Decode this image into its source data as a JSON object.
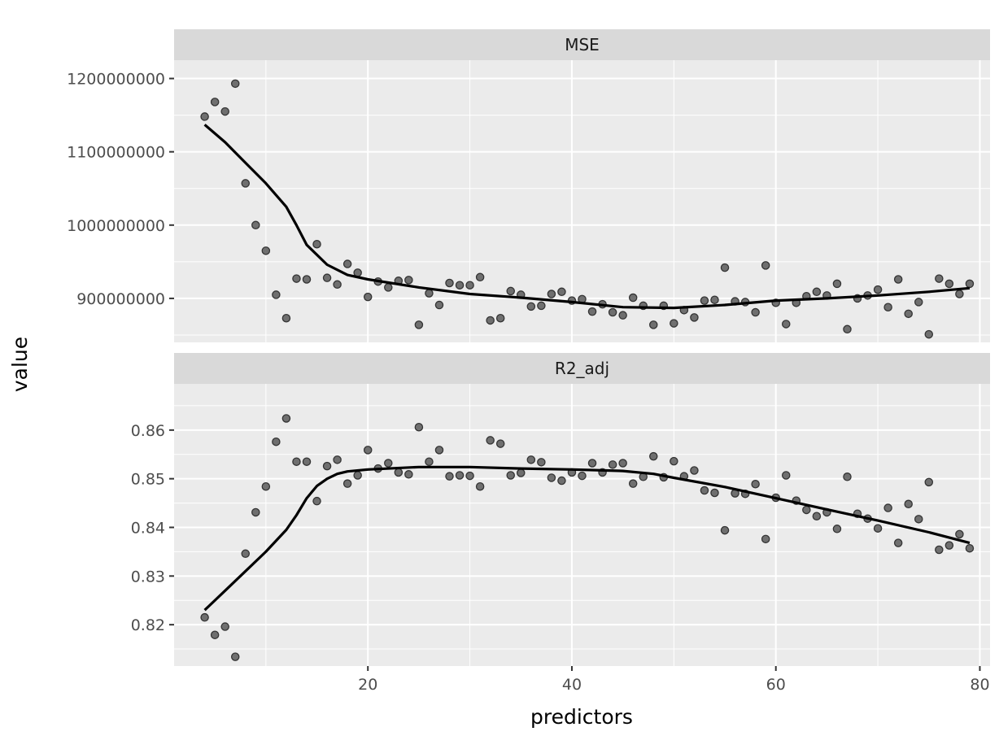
{
  "chart_data": {
    "type": "scatter",
    "xlabel": "predictors",
    "ylabel": "value",
    "xlim": [
      1,
      81
    ],
    "x_ticks": [
      20,
      40,
      60,
      80
    ],
    "x_tick_labels": [
      "20",
      "40",
      "60",
      "80"
    ],
    "colors": {
      "panel_bg": "#ebebeb",
      "strip_bg": "#d9d9d9",
      "grid": "#ffffff",
      "point_fill": "#595959",
      "point_stroke": "#333333",
      "smooth_line": "#000000"
    },
    "panels": [
      {
        "facet": "MSE",
        "ylim": [
          840000000,
          1225000000
        ],
        "y_ticks": [
          900000000,
          1000000000,
          1100000000,
          1200000000
        ],
        "y_tick_labels": [
          "900000000",
          "1000000000",
          "1100000000",
          "1200000000"
        ],
        "points": [
          [
            4,
            1148000000
          ],
          [
            5,
            1168000000
          ],
          [
            6,
            1155000000
          ],
          [
            7,
            1193000000
          ],
          [
            8,
            1057000000
          ],
          [
            9,
            1000000000
          ],
          [
            10,
            965000000
          ],
          [
            11,
            905000000
          ],
          [
            12,
            873000000
          ],
          [
            13,
            927000000
          ],
          [
            14,
            926000000
          ],
          [
            15,
            974000000
          ],
          [
            16,
            928000000
          ],
          [
            17,
            919000000
          ],
          [
            18,
            947000000
          ],
          [
            19,
            935000000
          ],
          [
            20,
            902000000
          ],
          [
            21,
            923000000
          ],
          [
            22,
            915000000
          ],
          [
            23,
            924000000
          ],
          [
            24,
            925000000
          ],
          [
            25,
            864000000
          ],
          [
            26,
            907000000
          ],
          [
            27,
            891000000
          ],
          [
            28,
            921000000
          ],
          [
            29,
            918000000
          ],
          [
            30,
            918000000
          ],
          [
            31,
            929000000
          ],
          [
            32,
            870000000
          ],
          [
            33,
            873000000
          ],
          [
            34,
            910000000
          ],
          [
            35,
            905000000
          ],
          [
            36,
            889000000
          ],
          [
            37,
            890000000
          ],
          [
            38,
            906000000
          ],
          [
            39,
            909000000
          ],
          [
            40,
            897000000
          ],
          [
            41,
            899000000
          ],
          [
            42,
            882000000
          ],
          [
            43,
            892000000
          ],
          [
            44,
            881000000
          ],
          [
            45,
            877000000
          ],
          [
            46,
            901000000
          ],
          [
            47,
            890000000
          ],
          [
            48,
            864000000
          ],
          [
            49,
            890000000
          ],
          [
            50,
            866000000
          ],
          [
            51,
            884000000
          ],
          [
            52,
            874000000
          ],
          [
            53,
            897000000
          ],
          [
            54,
            898000000
          ],
          [
            55,
            942000000
          ],
          [
            56,
            896000000
          ],
          [
            57,
            895000000
          ],
          [
            58,
            881000000
          ],
          [
            59,
            945000000
          ],
          [
            60,
            894000000
          ],
          [
            61,
            865000000
          ],
          [
            62,
            894000000
          ],
          [
            63,
            903000000
          ],
          [
            64,
            909000000
          ],
          [
            65,
            904000000
          ],
          [
            66,
            920000000
          ],
          [
            67,
            858000000
          ],
          [
            68,
            900000000
          ],
          [
            69,
            904000000
          ],
          [
            70,
            912000000
          ],
          [
            71,
            888000000
          ],
          [
            72,
            926000000
          ],
          [
            73,
            879000000
          ],
          [
            74,
            895000000
          ],
          [
            75,
            851000000
          ],
          [
            76,
            927000000
          ],
          [
            77,
            920000000
          ],
          [
            78,
            906000000
          ],
          [
            79,
            920000000
          ]
        ],
        "smooth": [
          [
            4,
            1137000000
          ],
          [
            6,
            1113000000
          ],
          [
            8,
            1085000000
          ],
          [
            10,
            1057000000
          ],
          [
            12,
            1025000000
          ],
          [
            13,
            1000000000
          ],
          [
            14,
            973000000
          ],
          [
            16,
            946000000
          ],
          [
            18,
            932000000
          ],
          [
            20,
            926000000
          ],
          [
            25,
            915000000
          ],
          [
            30,
            906000000
          ],
          [
            35,
            901000000
          ],
          [
            40,
            895000000
          ],
          [
            45,
            888000000
          ],
          [
            50,
            887000000
          ],
          [
            55,
            891000000
          ],
          [
            60,
            897000000
          ],
          [
            65,
            900000000
          ],
          [
            70,
            904000000
          ],
          [
            75,
            909000000
          ],
          [
            79,
            914000000
          ]
        ]
      },
      {
        "facet": "R2_adj",
        "ylim": [
          0.8115,
          0.8695
        ],
        "y_ticks": [
          0.82,
          0.83,
          0.84,
          0.85,
          0.86
        ],
        "y_tick_labels": [
          "0.82",
          "0.83",
          "0.84",
          "0.85",
          "0.86"
        ],
        "points": [
          [
            4,
            0.8215
          ],
          [
            5,
            0.8179
          ],
          [
            6,
            0.8196
          ],
          [
            7,
            0.8134
          ],
          [
            8,
            0.8346
          ],
          [
            9,
            0.8431
          ],
          [
            10,
            0.8484
          ],
          [
            11,
            0.8576
          ],
          [
            12,
            0.8624
          ],
          [
            13,
            0.8535
          ],
          [
            14,
            0.8535
          ],
          [
            15,
            0.8454
          ],
          [
            16,
            0.8526
          ],
          [
            17,
            0.8539
          ],
          [
            18,
            0.849
          ],
          [
            19,
            0.8507
          ],
          [
            20,
            0.8559
          ],
          [
            21,
            0.8521
          ],
          [
            22,
            0.8532
          ],
          [
            23,
            0.8513
          ],
          [
            24,
            0.8509
          ],
          [
            25,
            0.8606
          ],
          [
            26,
            0.8535
          ],
          [
            27,
            0.8559
          ],
          [
            28,
            0.8505
          ],
          [
            29,
            0.8507
          ],
          [
            30,
            0.8506
          ],
          [
            31,
            0.8484
          ],
          [
            32,
            0.8579
          ],
          [
            33,
            0.8572
          ],
          [
            34,
            0.8507
          ],
          [
            35,
            0.8512
          ],
          [
            36,
            0.8539
          ],
          [
            37,
            0.8534
          ],
          [
            38,
            0.8502
          ],
          [
            39,
            0.8496
          ],
          [
            40,
            0.8513
          ],
          [
            41,
            0.8506
          ],
          [
            42,
            0.8532
          ],
          [
            43,
            0.8513
          ],
          [
            44,
            0.8529
          ],
          [
            45,
            0.8532
          ],
          [
            46,
            0.849
          ],
          [
            47,
            0.8504
          ],
          [
            48,
            0.8546
          ],
          [
            49,
            0.8503
          ],
          [
            50,
            0.8536
          ],
          [
            51,
            0.8505
          ],
          [
            52,
            0.8517
          ],
          [
            53,
            0.8476
          ],
          [
            54,
            0.8471
          ],
          [
            55,
            0.8394
          ],
          [
            56,
            0.847
          ],
          [
            57,
            0.8469
          ],
          [
            58,
            0.8489
          ],
          [
            59,
            0.8376
          ],
          [
            60,
            0.8461
          ],
          [
            61,
            0.8507
          ],
          [
            62,
            0.8455
          ],
          [
            63,
            0.8436
          ],
          [
            64,
            0.8423
          ],
          [
            65,
            0.8431
          ],
          [
            66,
            0.8397
          ],
          [
            67,
            0.8504
          ],
          [
            68,
            0.8428
          ],
          [
            69,
            0.8418
          ],
          [
            70,
            0.8398
          ],
          [
            71,
            0.844
          ],
          [
            72,
            0.8368
          ],
          [
            73,
            0.8448
          ],
          [
            74,
            0.8417
          ],
          [
            75,
            0.8493
          ],
          [
            76,
            0.8354
          ],
          [
            77,
            0.8363
          ],
          [
            78,
            0.8386
          ],
          [
            79,
            0.8357
          ]
        ],
        "smooth": [
          [
            4,
            0.823
          ],
          [
            6,
            0.827
          ],
          [
            8,
            0.831
          ],
          [
            10,
            0.835
          ],
          [
            12,
            0.8395
          ],
          [
            13,
            0.8425
          ],
          [
            14,
            0.846
          ],
          [
            15,
            0.8485
          ],
          [
            16,
            0.85
          ],
          [
            17,
            0.851
          ],
          [
            18,
            0.8515
          ],
          [
            20,
            0.8519
          ],
          [
            25,
            0.8524
          ],
          [
            30,
            0.8524
          ],
          [
            35,
            0.8521
          ],
          [
            40,
            0.8519
          ],
          [
            45,
            0.8516
          ],
          [
            48,
            0.851
          ],
          [
            50,
            0.8502
          ],
          [
            55,
            0.8483
          ],
          [
            60,
            0.846
          ],
          [
            65,
            0.8437
          ],
          [
            70,
            0.8414
          ],
          [
            75,
            0.839
          ],
          [
            79,
            0.8368
          ]
        ]
      }
    ]
  }
}
